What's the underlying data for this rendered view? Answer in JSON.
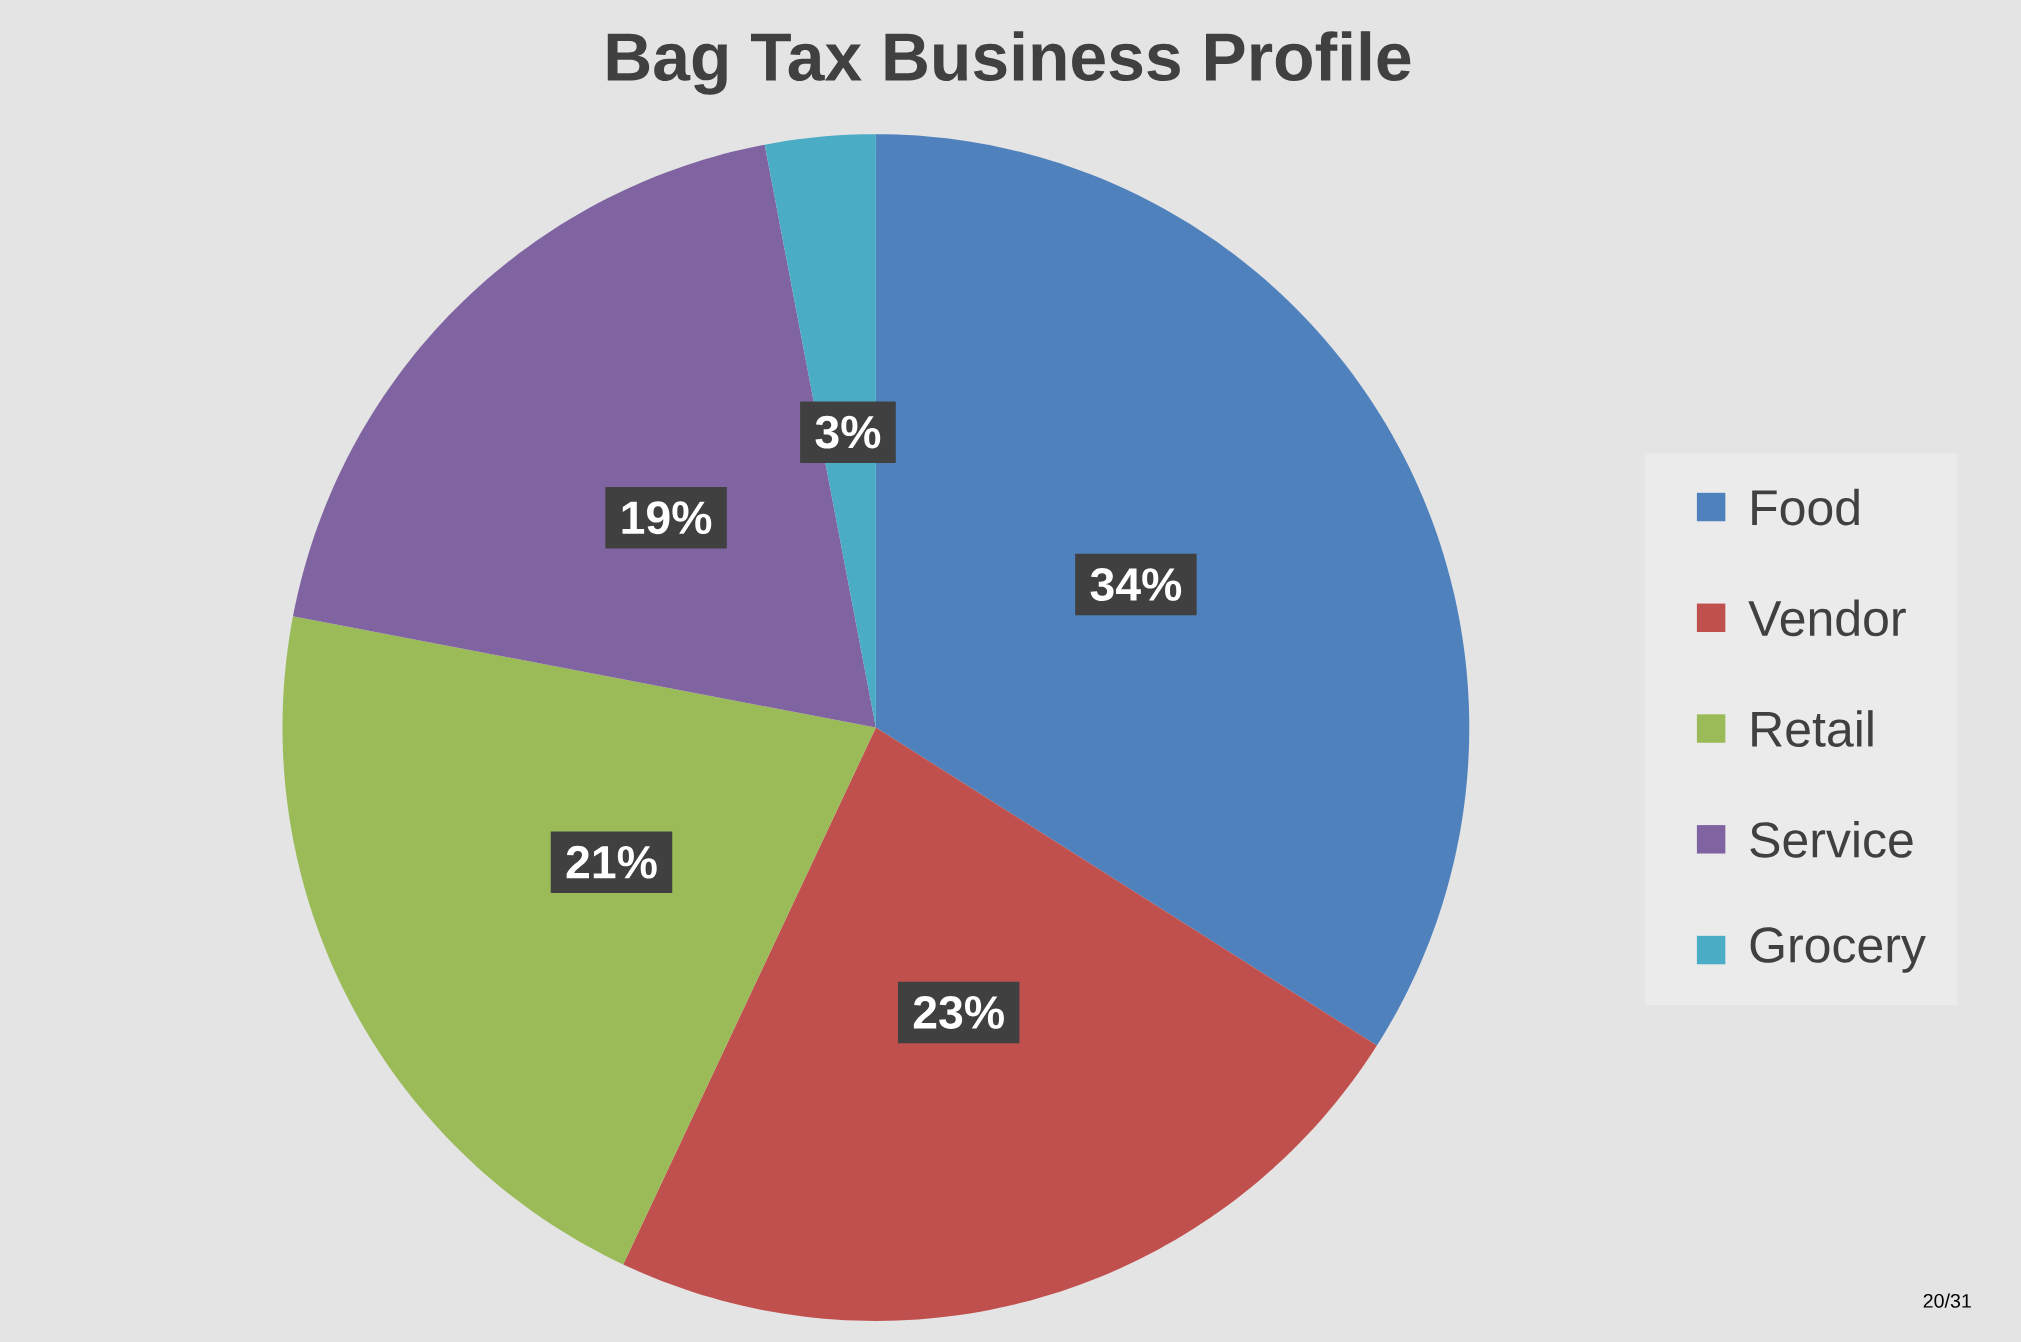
{
  "chart_data": {
    "type": "pie",
    "title": "Bag Tax Business Profile",
    "categories": [
      "Food",
      "Vendor",
      "Retail",
      "Service",
      "Grocery"
    ],
    "values": [
      34,
      23,
      21,
      19,
      3
    ],
    "colors": [
      "#4f81bd",
      "#c0504d",
      "#9bbb59",
      "#8064a2",
      "#4bacc6"
    ],
    "value_labels": [
      "34%",
      "23%",
      "21%",
      "19%",
      "3%"
    ],
    "legend": "right",
    "annotations": [
      "20/31"
    ]
  }
}
